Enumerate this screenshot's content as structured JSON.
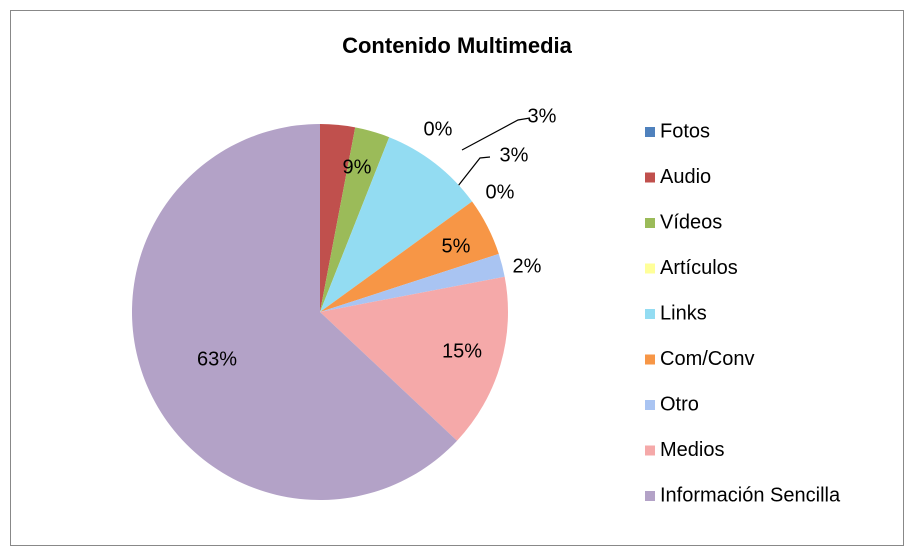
{
  "chart_data": {
    "type": "pie",
    "title": "Contenido Multimedia",
    "categories": [
      "Fotos",
      "Audio",
      "Vídeos",
      "Artículos",
      "Links",
      "Com/Conv",
      "Otro",
      "Medios",
      "Información Sencilla"
    ],
    "values": [
      0,
      3,
      3,
      0,
      9,
      5,
      2,
      15,
      63
    ],
    "value_labels": [
      "0%",
      "3%",
      "3%",
      "0%",
      "9%",
      "5%",
      "2%",
      "15%",
      "63%"
    ],
    "colors": [
      "#4f81bd",
      "#c0504d",
      "#9bbb59",
      "#ffff99",
      "#93dcf2",
      "#f79646",
      "#a9c4f2",
      "#f5a9a9",
      "#b3a2c7"
    ],
    "legend": "right"
  }
}
